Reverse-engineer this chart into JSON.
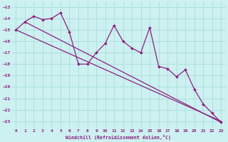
{
  "bg_color": "#cdf0f0",
  "grid_color": "#a8dede",
  "line_color": "#8b2080",
  "xlabel": "Windchill (Refroidissement éolien,°C)",
  "xlim": [
    -0.5,
    23.5
  ],
  "ylim": [
    -23.6,
    -12.6
  ],
  "yticks": [
    -13,
    -14,
    -15,
    -16,
    -17,
    -18,
    -19,
    -20,
    -21,
    -22,
    -23
  ],
  "xticks": [
    0,
    1,
    2,
    3,
    4,
    5,
    6,
    7,
    8,
    9,
    10,
    11,
    12,
    13,
    14,
    15,
    16,
    17,
    18,
    19,
    20,
    21,
    22,
    23
  ],
  "zigzag_x": [
    0,
    1,
    2,
    3,
    4,
    5,
    6,
    7,
    8,
    9,
    10,
    11,
    12,
    13,
    14,
    15,
    16,
    17,
    18,
    19,
    20,
    21,
    22,
    23
  ],
  "zigzag_y": [
    -15.0,
    -14.3,
    -13.8,
    -14.1,
    -14.0,
    -13.5,
    -15.2,
    -18.0,
    -18.0,
    -17.0,
    -16.2,
    -14.6,
    -16.0,
    -16.6,
    -17.0,
    -14.8,
    -18.2,
    -18.4,
    -19.1,
    -18.5,
    -20.2,
    -21.5,
    -22.3,
    -23.1
  ],
  "line1_x": [
    0,
    23
  ],
  "line1_y": [
    -15.0,
    -23.0
  ],
  "line2_x": [
    1,
    23
  ],
  "line2_y": [
    -14.3,
    -23.1
  ]
}
